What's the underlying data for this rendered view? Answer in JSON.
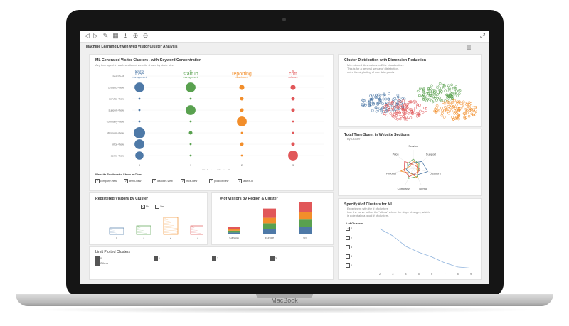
{
  "device": {
    "brand": "MacBook"
  },
  "toolbar": {
    "icons": [
      "back-icon",
      "forward-icon",
      "edit-icon",
      "calendar-icon",
      "download-icon",
      "zoom-in-icon",
      "zoom-out-icon",
      "fullscreen-icon"
    ]
  },
  "dashboard": {
    "title": "Machine Learning Driven Web Visitor Cluster Analysis"
  },
  "clusters_panel": {
    "title": "ML Generated Visitor Clusters - with Keyword Concentration",
    "subtitle": "Avg time spent in each section of website shown by circle size",
    "x_axis_label": "ML Assigned Cluster ID",
    "sections_label": "Website Sections to Show in Chart",
    "section_options": [
      "company-view",
      "demo-view",
      "discount-view",
      "price-view",
      "product-view",
      "search-id"
    ],
    "chart_data": {
      "type": "scatter",
      "x_categories": [
        "0",
        "1",
        "2",
        "3"
      ],
      "y_categories": [
        "search-id",
        "product-view",
        "service-view",
        "support-view",
        "company-view",
        "discount-view",
        "price-view",
        "demo-view"
      ],
      "series_colors": [
        "#4e79a7",
        "#59a14f",
        "#f28e2b",
        "#e15759"
      ],
      "bubble_sizes": [
        [
          0,
          0,
          0,
          0
        ],
        [
          6,
          6,
          3,
          3
        ],
        [
          1,
          1,
          2,
          2
        ],
        [
          1,
          6,
          2,
          2
        ],
        [
          1,
          1,
          6,
          1
        ],
        [
          7,
          2,
          1,
          1
        ],
        [
          6,
          1,
          2,
          2
        ],
        [
          5,
          1,
          1,
          6
        ]
      ],
      "keywords": [
        {
          "cluster": 0,
          "words": [
            "security",
            "free",
            "management"
          ]
        },
        {
          "cluster": 1,
          "words": [
            "ai",
            "startup",
            "management"
          ]
        },
        {
          "cluster": 2,
          "words": [
            "reporting",
            "dashboard"
          ]
        },
        {
          "cluster": 3,
          "words": [
            "ai",
            "crm",
            "software"
          ]
        }
      ]
    }
  },
  "dimension_panel": {
    "title": "Cluster Distribution with Dimension Reduction",
    "note_lines": [
      "ML reduced dimensions to 2 for visualization.",
      "This is for a general sense of distribution,",
      "not a literal plotting of raw data points"
    ],
    "chart_data": {
      "type": "scatter",
      "clusters": [
        {
          "color": "#4e79a7",
          "center": [
            0.3,
            0.55
          ]
        },
        {
          "color": "#59a14f",
          "center": [
            0.72,
            0.35
          ]
        },
        {
          "color": "#e15759",
          "center": [
            0.45,
            0.7
          ]
        },
        {
          "color": "#f28e2b",
          "center": [
            0.85,
            0.7
          ]
        }
      ]
    }
  },
  "time_panel": {
    "title": "Total Time Spent in Website Sections",
    "subtitle": "By Cluster",
    "chart_data": {
      "type": "radar",
      "axes": [
        "Service",
        "Support",
        "Discount",
        "Demo",
        "Company",
        "Product",
        "Price"
      ],
      "series": [
        {
          "color": "#4e79a7",
          "values": [
            0.3,
            0.6,
            0.8,
            0.4,
            0.3,
            0.4,
            0.3
          ]
        },
        {
          "color": "#59a14f",
          "values": [
            0.5,
            0.4,
            0.3,
            0.5,
            0.6,
            0.3,
            0.4
          ]
        },
        {
          "color": "#f28e2b",
          "values": [
            0.4,
            0.3,
            0.2,
            0.6,
            0.3,
            0.7,
            0.2
          ]
        },
        {
          "color": "#e15759",
          "values": [
            0.2,
            0.2,
            0.4,
            0.3,
            0.5,
            0.5,
            0.6
          ]
        }
      ]
    }
  },
  "registered_panel": {
    "title": "Registered Visitors by Cluster",
    "legend": [
      "No",
      "Yes"
    ],
    "chart_data": {
      "type": "bar",
      "categories": [
        "0",
        "1",
        "2",
        "3"
      ],
      "values": [
        3,
        4,
        8,
        4
      ],
      "colors": [
        "#4e79a7",
        "#59a14f",
        "#f28e2b",
        "#e15759"
      ]
    }
  },
  "region_panel": {
    "title": "# of Visitors by Region & Cluster",
    "chart_data": {
      "type": "bar",
      "stacked": true,
      "categories": [
        "Canada",
        "Europe",
        "US"
      ],
      "series": [
        {
          "color": "#4e79a7",
          "values": [
            1,
            3,
            4
          ]
        },
        {
          "color": "#59a14f",
          "values": [
            1,
            3,
            4
          ]
        },
        {
          "color": "#f28e2b",
          "values": [
            1,
            3,
            4
          ]
        },
        {
          "color": "#e15759",
          "values": [
            1,
            5,
            6
          ]
        }
      ]
    }
  },
  "elbow_panel": {
    "title": "Specify # of Clusters for ML",
    "note_lines": [
      "Experiment with the # of clusters",
      "Use the curve to find the \"elbow\" where the slope changes, which",
      "is potentially a good # of clusters."
    ],
    "clusters_label": "# of Clusters",
    "options": [
      "4",
      "2",
      "3",
      "5",
      "6"
    ],
    "selected": "4",
    "chart_data": {
      "type": "line",
      "x": [
        2,
        3,
        4,
        5,
        6,
        7,
        8,
        9
      ],
      "y": [
        100,
        88,
        70,
        60,
        52,
        42,
        35,
        33
      ],
      "color": "#8fb3dd"
    }
  },
  "limit_panel": {
    "title": "Limit Plotted Clusters",
    "options": [
      "0",
      "1",
      "2",
      "3",
      "Others"
    ]
  }
}
